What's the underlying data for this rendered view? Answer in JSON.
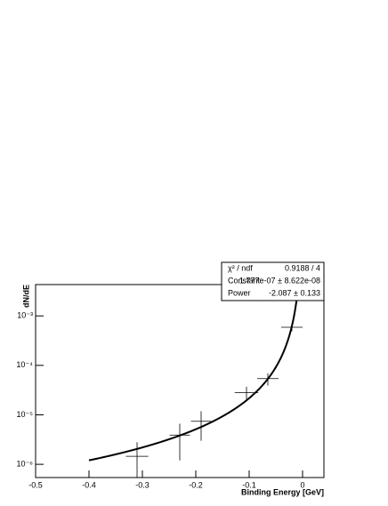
{
  "chart_data": {
    "type": "errorbar",
    "x_label": "Binding Energy [GeV]",
    "y_label": "dN/dE",
    "x": [
      -0.31,
      -0.23,
      -0.19,
      -0.105,
      -0.065,
      -0.02
    ],
    "values": [
      1.45e-06,
      3.9e-06,
      7.4e-06,
      2.8e-05,
      5.4e-05,
      0.00059
    ],
    "xerr": [
      0.021,
      0.019,
      0.019,
      0.022,
      0.02,
      0.02
    ],
    "yerr": [
      1.35e-06,
      2.7e-06,
      4.4e-06,
      9e-06,
      1.5e-05,
      0.0001
    ],
    "color": "#000000",
    "xlim": [
      -0.5,
      0.04
    ],
    "ylim": [
      5.4e-07,
      0.0043
    ],
    "log_y": true,
    "xticks": [
      -0.5,
      -0.4,
      -0.3,
      -0.2,
      -0.1,
      0
    ],
    "yticks": [
      {
        "value": 1e-06,
        "label": "10⁻⁶"
      },
      {
        "value": 1e-05,
        "label": "10⁻⁵"
      },
      {
        "value": 0.0001,
        "label": "10⁻⁴"
      },
      {
        "value": 0.001,
        "label": "10⁻³"
      }
    ],
    "fit": {
      "xrange": [
        -0.4,
        0
      ],
      "chi2_name": "χ² / ndf",
      "chi2": "0.9188 / 4",
      "params": [
        {
          "name": "Constant",
          "value": 1.777e-07,
          "label": "1.777e-07 ± 8.622e-08"
        },
        {
          "name": "Power",
          "value": -2.087,
          "label": "-2.087 ± 0.133"
        }
      ]
    }
  }
}
